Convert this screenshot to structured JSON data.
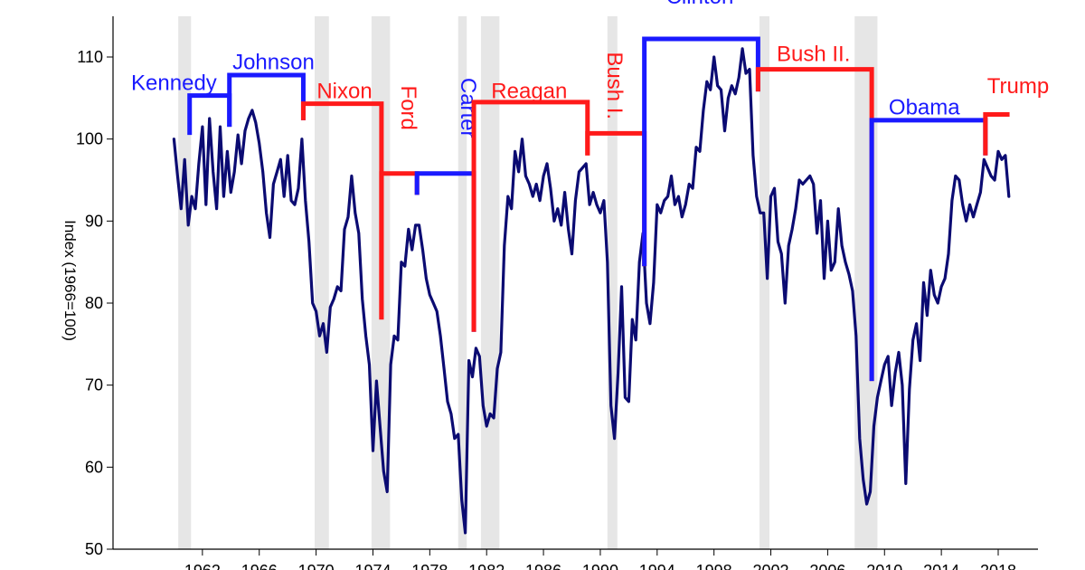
{
  "chart_data": {
    "type": "line",
    "title": "",
    "xlabel": "",
    "ylabel": "Index (1966=100)",
    "xlim": [
      1956,
      2021
    ],
    "ylim": [
      50,
      115
    ],
    "yticks": [
      50,
      60,
      70,
      80,
      90,
      100,
      110
    ],
    "xticks": [
      1962,
      1966,
      1970,
      1974,
      1978,
      1982,
      1986,
      1990,
      1994,
      1998,
      2002,
      2006,
      2010,
      2014,
      2018
    ],
    "grid": false,
    "recessions": [
      [
        1960.3,
        1961.2
      ],
      [
        1969.9,
        1970.9
      ],
      [
        1973.9,
        1975.2
      ],
      [
        1980.0,
        1980.6
      ],
      [
        1981.6,
        1982.9
      ],
      [
        1990.5,
        1991.2
      ],
      [
        2001.2,
        2001.9
      ],
      [
        2007.9,
        2009.5
      ]
    ],
    "colors": {
      "line": "#0b0b72",
      "democrat": "#1a1aff",
      "republican": "#ff1a1a",
      "recession": "#e6e6e6",
      "axis": "#000000"
    },
    "series": [
      {
        "values": [
          [
            1960.0,
            100.0
          ],
          [
            1960.25,
            95.5
          ],
          [
            1960.5,
            91.5
          ],
          [
            1960.75,
            97.5
          ],
          [
            1961.0,
            89.5
          ],
          [
            1961.25,
            93.0
          ],
          [
            1961.5,
            91.5
          ],
          [
            1961.75,
            97.0
          ],
          [
            1962.0,
            101.5
          ],
          [
            1962.25,
            92.0
          ],
          [
            1962.5,
            102.5
          ],
          [
            1962.75,
            96.0
          ],
          [
            1963.0,
            91.5
          ],
          [
            1963.25,
            101.5
          ],
          [
            1963.5,
            93.0
          ],
          [
            1963.75,
            98.5
          ],
          [
            1964.0,
            93.5
          ],
          [
            1964.25,
            96.0
          ],
          [
            1964.5,
            100.5
          ],
          [
            1964.75,
            97.0
          ],
          [
            1965.0,
            101.0
          ],
          [
            1965.25,
            102.5
          ],
          [
            1965.5,
            103.5
          ],
          [
            1965.75,
            102.0
          ],
          [
            1966.0,
            99.5
          ],
          [
            1966.25,
            96.0
          ],
          [
            1966.5,
            91.0
          ],
          [
            1966.75,
            88.0
          ],
          [
            1967.0,
            94.5
          ],
          [
            1967.25,
            96.0
          ],
          [
            1967.5,
            97.5
          ],
          [
            1967.75,
            93.0
          ],
          [
            1968.0,
            98.0
          ],
          [
            1968.25,
            92.5
          ],
          [
            1968.5,
            92.0
          ],
          [
            1968.75,
            94.0
          ],
          [
            1969.0,
            100.0
          ],
          [
            1969.25,
            92.5
          ],
          [
            1969.5,
            87.5
          ],
          [
            1969.75,
            80.0
          ],
          [
            1970.0,
            79.0
          ],
          [
            1970.25,
            76.0
          ],
          [
            1970.5,
            77.5
          ],
          [
            1970.75,
            74.0
          ],
          [
            1971.0,
            79.5
          ],
          [
            1971.25,
            80.5
          ],
          [
            1971.5,
            82.0
          ],
          [
            1971.75,
            81.5
          ],
          [
            1972.0,
            89.0
          ],
          [
            1972.25,
            90.5
          ],
          [
            1972.5,
            95.5
          ],
          [
            1972.75,
            91.0
          ],
          [
            1973.0,
            88.5
          ],
          [
            1973.25,
            80.5
          ],
          [
            1973.5,
            76.0
          ],
          [
            1973.75,
            72.5
          ],
          [
            1974.0,
            62.0
          ],
          [
            1974.25,
            70.5
          ],
          [
            1974.5,
            65.0
          ],
          [
            1974.75,
            59.5
          ],
          [
            1975.0,
            57.0
          ],
          [
            1975.25,
            72.5
          ],
          [
            1975.5,
            76.0
          ],
          [
            1975.75,
            75.5
          ],
          [
            1976.0,
            85.0
          ],
          [
            1976.25,
            84.5
          ],
          [
            1976.5,
            89.0
          ],
          [
            1976.75,
            86.5
          ],
          [
            1977.0,
            89.5
          ],
          [
            1977.25,
            89.5
          ],
          [
            1977.5,
            86.5
          ],
          [
            1977.75,
            83.0
          ],
          [
            1978.0,
            81.0
          ],
          [
            1978.25,
            80.0
          ],
          [
            1978.5,
            79.0
          ],
          [
            1978.75,
            76.0
          ],
          [
            1979.0,
            72.0
          ],
          [
            1979.25,
            68.0
          ],
          [
            1979.5,
            66.5
          ],
          [
            1979.75,
            63.5
          ],
          [
            1980.0,
            64.0
          ],
          [
            1980.25,
            56.0
          ],
          [
            1980.5,
            52.0
          ],
          [
            1980.75,
            73.0
          ],
          [
            1981.0,
            71.0
          ],
          [
            1981.25,
            74.5
          ],
          [
            1981.5,
            73.5
          ],
          [
            1981.75,
            67.5
          ],
          [
            1982.0,
            65.0
          ],
          [
            1982.25,
            66.5
          ],
          [
            1982.5,
            66.0
          ],
          [
            1982.75,
            72.0
          ],
          [
            1983.0,
            74.0
          ],
          [
            1983.25,
            87.0
          ],
          [
            1983.5,
            93.0
          ],
          [
            1983.75,
            91.5
          ],
          [
            1984.0,
            98.5
          ],
          [
            1984.25,
            96.0
          ],
          [
            1984.5,
            100.0
          ],
          [
            1984.75,
            95.5
          ],
          [
            1985.0,
            94.5
          ],
          [
            1985.25,
            93.0
          ],
          [
            1985.5,
            94.5
          ],
          [
            1985.75,
            92.5
          ],
          [
            1986.0,
            95.5
          ],
          [
            1986.25,
            97.0
          ],
          [
            1986.5,
            94.0
          ],
          [
            1986.75,
            90.0
          ],
          [
            1987.0,
            91.5
          ],
          [
            1987.25,
            89.5
          ],
          [
            1987.5,
            93.5
          ],
          [
            1987.75,
            89.0
          ],
          [
            1988.0,
            86.0
          ],
          [
            1988.25,
            92.5
          ],
          [
            1988.5,
            96.0
          ],
          [
            1988.75,
            96.5
          ],
          [
            1989.0,
            97.0
          ],
          [
            1989.25,
            92.0
          ],
          [
            1989.5,
            93.5
          ],
          [
            1989.75,
            92.0
          ],
          [
            1990.0,
            91.0
          ],
          [
            1990.25,
            92.5
          ],
          [
            1990.5,
            85.0
          ],
          [
            1990.75,
            67.5
          ],
          [
            1991.0,
            63.5
          ],
          [
            1991.25,
            71.5
          ],
          [
            1991.5,
            82.0
          ],
          [
            1991.75,
            68.5
          ],
          [
            1992.0,
            68.0
          ],
          [
            1992.25,
            78.0
          ],
          [
            1992.5,
            75.5
          ],
          [
            1992.75,
            85.0
          ],
          [
            1993.0,
            88.5
          ],
          [
            1993.25,
            80.0
          ],
          [
            1993.5,
            77.5
          ],
          [
            1993.75,
            82.5
          ],
          [
            1994.0,
            92.0
          ],
          [
            1994.25,
            91.0
          ],
          [
            1994.5,
            92.5
          ],
          [
            1994.75,
            93.0
          ],
          [
            1995.0,
            95.5
          ],
          [
            1995.25,
            92.0
          ],
          [
            1995.5,
            93.0
          ],
          [
            1995.75,
            90.5
          ],
          [
            1996.0,
            92.0
          ],
          [
            1996.25,
            94.5
          ],
          [
            1996.5,
            94.0
          ],
          [
            1996.75,
            99.0
          ],
          [
            1997.0,
            98.5
          ],
          [
            1997.25,
            103.5
          ],
          [
            1997.5,
            107.0
          ],
          [
            1997.75,
            106.0
          ],
          [
            1998.0,
            110.0
          ],
          [
            1998.25,
            106.5
          ],
          [
            1998.5,
            106.0
          ],
          [
            1998.75,
            101.0
          ],
          [
            1999.0,
            105.0
          ],
          [
            1999.25,
            106.5
          ],
          [
            1999.5,
            105.5
          ],
          [
            1999.75,
            107.5
          ],
          [
            2000.0,
            111.0
          ],
          [
            2000.25,
            108.0
          ],
          [
            2000.5,
            108.5
          ],
          [
            2000.75,
            98.0
          ],
          [
            2001.0,
            93.0
          ],
          [
            2001.25,
            91.0
          ],
          [
            2001.5,
            91.0
          ],
          [
            2001.75,
            83.0
          ],
          [
            2002.0,
            93.0
          ],
          [
            2002.25,
            94.0
          ],
          [
            2002.5,
            87.5
          ],
          [
            2002.75,
            86.0
          ],
          [
            2003.0,
            80.0
          ],
          [
            2003.25,
            87.0
          ],
          [
            2003.5,
            89.0
          ],
          [
            2003.75,
            91.5
          ],
          [
            2004.0,
            95.0
          ],
          [
            2004.25,
            94.5
          ],
          [
            2004.5,
            95.0
          ],
          [
            2004.75,
            95.5
          ],
          [
            2005.0,
            94.5
          ],
          [
            2005.25,
            88.5
          ],
          [
            2005.5,
            92.5
          ],
          [
            2005.75,
            83.0
          ],
          [
            2006.0,
            90.0
          ],
          [
            2006.25,
            84.0
          ],
          [
            2006.5,
            85.0
          ],
          [
            2006.75,
            91.5
          ],
          [
            2007.0,
            87.0
          ],
          [
            2007.25,
            85.0
          ],
          [
            2007.5,
            83.5
          ],
          [
            2007.75,
            81.5
          ],
          [
            2008.0,
            76.0
          ],
          [
            2008.25,
            63.5
          ],
          [
            2008.5,
            58.5
          ],
          [
            2008.75,
            55.5
          ],
          [
            2009.0,
            57.0
          ],
          [
            2009.25,
            65.0
          ],
          [
            2009.5,
            68.5
          ],
          [
            2009.75,
            70.5
          ],
          [
            2010.0,
            72.5
          ],
          [
            2010.25,
            73.5
          ],
          [
            2010.5,
            67.5
          ],
          [
            2010.75,
            71.5
          ],
          [
            2011.0,
            74.0
          ],
          [
            2011.25,
            70.0
          ],
          [
            2011.5,
            58.0
          ],
          [
            2011.75,
            69.5
          ],
          [
            2012.0,
            75.5
          ],
          [
            2012.25,
            77.5
          ],
          [
            2012.5,
            73.0
          ],
          [
            2012.75,
            82.5
          ],
          [
            2013.0,
            78.5
          ],
          [
            2013.25,
            84.0
          ],
          [
            2013.5,
            81.0
          ],
          [
            2013.75,
            80.0
          ],
          [
            2014.0,
            82.0
          ],
          [
            2014.25,
            83.0
          ],
          [
            2014.5,
            86.0
          ],
          [
            2014.75,
            92.5
          ],
          [
            2015.0,
            95.5
          ],
          [
            2015.25,
            95.0
          ],
          [
            2015.5,
            92.0
          ],
          [
            2015.75,
            90.0
          ],
          [
            2016.0,
            92.0
          ],
          [
            2016.25,
            90.5
          ],
          [
            2016.5,
            92.0
          ],
          [
            2016.75,
            93.5
          ],
          [
            2017.0,
            97.5
          ],
          [
            2017.25,
            96.5
          ],
          [
            2017.5,
            95.5
          ],
          [
            2017.75,
            95.0
          ],
          [
            2018.0,
            98.5
          ],
          [
            2018.25,
            97.5
          ],
          [
            2018.5,
            98.0
          ],
          [
            2018.75,
            93.0
          ]
        ]
      }
    ],
    "presidents": [
      {
        "name": "Kennedy",
        "party": "democrat",
        "start": 1961.1,
        "end": 1963.9,
        "level": 105.3,
        "start_drop": 100.5,
        "end_drop": 101.5,
        "label_x": 1960.0,
        "label_y": 106.0,
        "vertical": false
      },
      {
        "name": "Johnson",
        "party": "democrat",
        "start": 1963.9,
        "end": 1969.1,
        "level": 107.8,
        "start_drop": 101.5,
        "end_drop": 102.3,
        "label_x": 1967.0,
        "label_y": 108.5,
        "vertical": false
      },
      {
        "name": "Nixon",
        "party": "republican",
        "start": 1969.1,
        "end": 1974.6,
        "level": 104.3,
        "start_drop": 102.3,
        "end_drop": 78.0,
        "label_x": 1972.0,
        "label_y": 105.0,
        "vertical": false
      },
      {
        "name": "Ford",
        "party": "republican",
        "start": 1974.6,
        "end": 1977.1,
        "level": 95.8,
        "start_drop": 78.0,
        "end_drop": 93.2,
        "label_x": 1976.0,
        "label_y": 103.8,
        "vertical": true
      },
      {
        "name": "Carter",
        "party": "democrat",
        "start": 1977.1,
        "end": 1981.1,
        "level": 95.8,
        "start_drop": 93.2,
        "end_drop": 76.5,
        "label_x": 1980.2,
        "label_y": 103.8,
        "vertical": true
      },
      {
        "name": "Reagan",
        "party": "republican",
        "start": 1981.1,
        "end": 1989.1,
        "level": 104.5,
        "start_drop": 76.5,
        "end_drop": 98.0,
        "label_x": 1985.0,
        "label_y": 105.0,
        "vertical": false
      },
      {
        "name": "Bush I.",
        "party": "republican",
        "start": 1989.1,
        "end": 1993.1,
        "level": 100.7,
        "start_drop": 98.0,
        "end_drop": 84.5,
        "label_x": 1990.5,
        "label_y": 106.5,
        "vertical": true
      },
      {
        "name": "Clinton",
        "party": "democrat",
        "start": 1993.1,
        "end": 2001.1,
        "level": 112.2,
        "start_drop": 84.5,
        "end_drop": 105.8,
        "label_x": 1997.0,
        "label_y": 116.5,
        "vertical": false
      },
      {
        "name": "Bush II.",
        "party": "republican",
        "start": 2001.1,
        "end": 2009.1,
        "level": 108.5,
        "start_drop": 105.8,
        "end_drop": 70.5,
        "label_x": 2005.0,
        "label_y": 109.5,
        "vertical": false
      },
      {
        "name": "Obama",
        "party": "democrat",
        "start": 2009.1,
        "end": 2017.1,
        "level": 102.3,
        "start_drop": 70.5,
        "end_drop": 98.0,
        "label_x": 2012.8,
        "label_y": 103.0,
        "vertical": false
      },
      {
        "name": "Trump",
        "party": "republican",
        "start": 2017.1,
        "end": 2018.8,
        "level": 103.0,
        "start_drop": 98.0,
        "end_drop": 103.0,
        "label_x": 2019.4,
        "label_y": 105.6,
        "vertical": false
      }
    ]
  }
}
